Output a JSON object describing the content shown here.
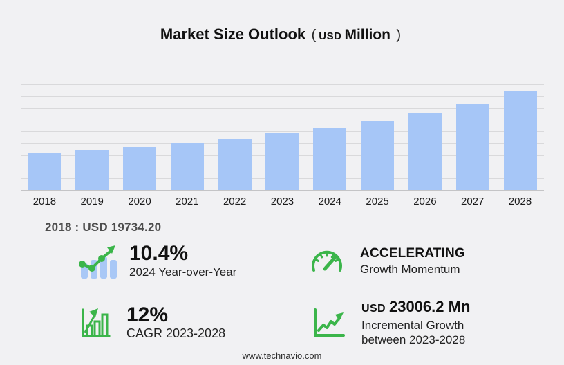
{
  "title": {
    "main": "Market Size Outlook",
    "paren_open": "(",
    "currency": "USD",
    "unit": "Million",
    "paren_close": ")"
  },
  "chart_data": {
    "type": "bar",
    "title": "Market Size Outlook (USD Million)",
    "categories": [
      "2018",
      "2019",
      "2020",
      "2021",
      "2022",
      "2023",
      "2024",
      "2025",
      "2026",
      "2027",
      "2028"
    ],
    "values": [
      19734.2,
      21500,
      23450,
      25350,
      27550,
      30180,
      33320,
      36860,
      40950,
      46170,
      53190
    ],
    "xlabel": "",
    "ylabel": "USD Million",
    "ylim": [
      0,
      57000
    ],
    "grid": true,
    "legend": "none",
    "bar_color": "#a6c6f7"
  },
  "annotation": {
    "label": "2018 : USD  19734.20"
  },
  "stats": [
    {
      "icon": "bar-trend-icon",
      "value": "10.4%",
      "label": "2024 Year-over-Year"
    },
    {
      "icon": "speedometer-icon",
      "value": "ACCELERATING",
      "label": "Growth Momentum"
    },
    {
      "icon": "bar-growth-icon",
      "value": "12%",
      "label": "CAGR 2023-2028"
    },
    {
      "icon": "line-growth-icon",
      "value_prefix": "USD",
      "value": "23006.2 Mn",
      "label": "Incremental Growth",
      "label2": "between 2023-2028"
    }
  ],
  "footer": {
    "url": "www.technavio.com"
  },
  "colors": {
    "background": "#f1f1f3",
    "bar": "#a6c6f7",
    "gridline": "#d9d9db",
    "axis": "#c4c4c6",
    "green": "#3bb54a",
    "text_dark": "#111111",
    "text_gray": "#4d4d4d"
  }
}
